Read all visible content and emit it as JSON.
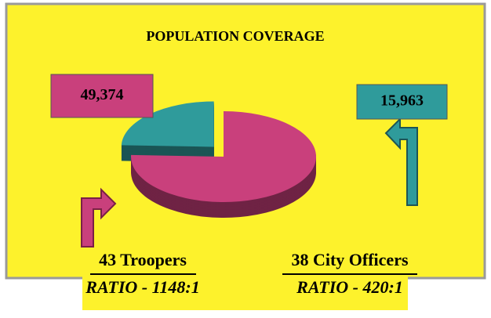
{
  "chart_data": {
    "type": "pie",
    "title": "POPULATION COVERAGE",
    "categories": [
      "43 Troopers",
      "38 City Officers"
    ],
    "ratios": [
      "RATIO - 1148:1",
      "RATIO - 420:1"
    ],
    "values": [
      49374,
      15963
    ],
    "value_labels": [
      "49,374",
      "15,963"
    ],
    "colors": [
      "#c9407c",
      "#2f9b9b"
    ],
    "explode": [
      0,
      0.15
    ]
  }
}
